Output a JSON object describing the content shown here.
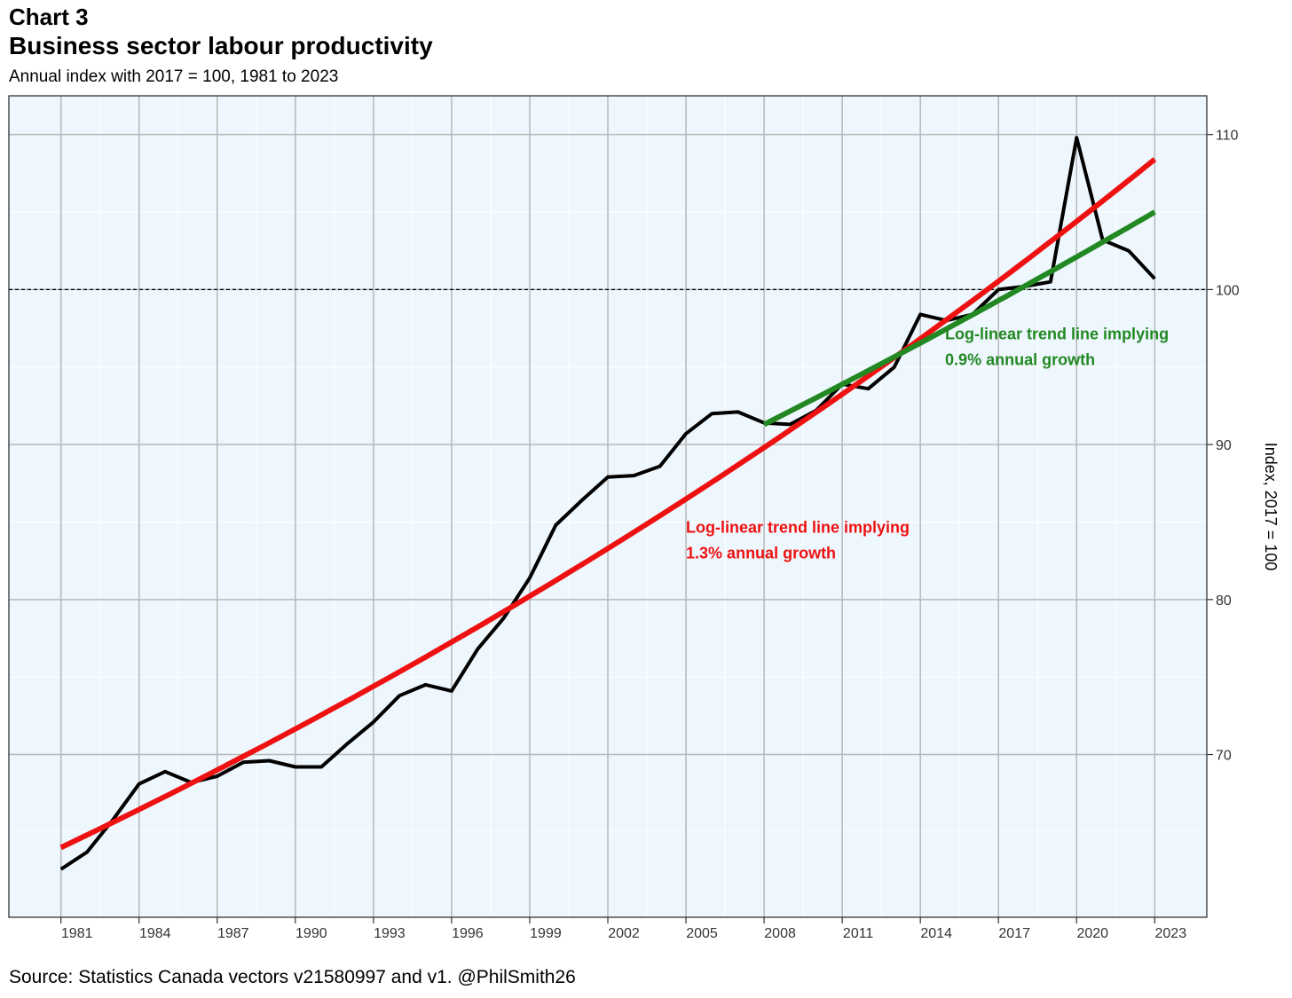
{
  "header": {
    "chart_label": "Chart 3",
    "title": "Business sector labour productivity",
    "subtitle": "Annual index with 2017 = 100, 1981 to 2023"
  },
  "source": "Source: Statistics Canada vectors v21580997 and v1. @PhilSmith26",
  "colors": {
    "panel_bg": "#eef7fe",
    "actual_line": "#000000",
    "trend_full": "#ee1111",
    "trend_recent": "#228822",
    "grid_major": "#b8b8b8",
    "grid_minor": "#ffffff"
  },
  "chart_data": {
    "type": "line",
    "title": "Business sector labour productivity",
    "subtitle": "Annual index with 2017 = 100, 1981 to 2023",
    "xlabel": "",
    "ylabel": "Index, 2017 = 100",
    "y_axis_position": "right",
    "xlim": [
      1979,
      2025
    ],
    "ylim": [
      59.5,
      112.5
    ],
    "x_ticks": [
      1981,
      1984,
      1987,
      1990,
      1993,
      1996,
      1999,
      2002,
      2005,
      2008,
      2011,
      2014,
      2017,
      2020,
      2023
    ],
    "y_ticks": [
      70,
      80,
      90,
      100,
      110
    ],
    "grid": true,
    "reference_line": {
      "y": 100,
      "style": "dashed"
    },
    "x": [
      1981,
      1982,
      1983,
      1984,
      1985,
      1986,
      1987,
      1988,
      1989,
      1990,
      1991,
      1992,
      1993,
      1994,
      1995,
      1996,
      1997,
      1998,
      1999,
      2000,
      2001,
      2002,
      2003,
      2004,
      2005,
      2006,
      2007,
      2008,
      2009,
      2010,
      2011,
      2012,
      2013,
      2014,
      2015,
      2016,
      2017,
      2018,
      2019,
      2020,
      2021,
      2022,
      2023
    ],
    "series": [
      {
        "values": [
          62.6,
          63.7,
          65.8,
          68.1,
          68.9,
          68.2,
          68.6,
          69.5,
          69.6,
          69.2,
          69.2,
          70.7,
          72.1,
          73.8,
          74.5,
          74.1,
          76.8,
          78.8,
          81.4,
          84.8,
          86.4,
          87.9,
          88.0,
          88.6,
          90.7,
          92.0,
          92.1,
          91.4,
          91.3,
          92.2,
          93.9,
          93.6,
          95.0,
          98.4,
          98.0,
          98.4,
          100.0,
          100.2,
          100.5,
          109.8,
          103.2,
          102.5,
          100.7
        ]
      },
      {
        "x": [
          1981,
          2023
        ],
        "values": [
          64.0,
          108.4
        ]
      },
      {
        "x": [
          2008,
          2023
        ],
        "values": [
          91.3,
          105.0
        ]
      }
    ],
    "annotations": [
      {
        "line1": "Log-linear trend line implying",
        "line2": "1.3% annual growth",
        "x": 2005,
        "y": 84.3,
        "color": "#ee1111"
      },
      {
        "line1": "Log-linear trend line implying",
        "line2": "0.9% annual growth",
        "x": 2014.95,
        "y": 96.8,
        "color": "#228822"
      }
    ]
  }
}
